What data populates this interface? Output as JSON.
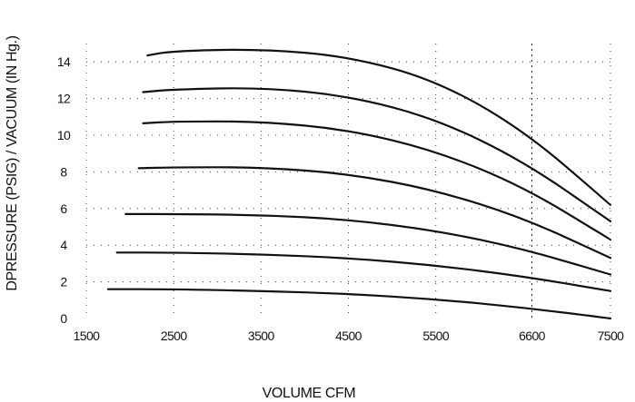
{
  "chart_data": {
    "type": "line",
    "xlabel": "VOLUME CFM",
    "ylabel": "DPRESSURE (PSIG) / VACUUM (IN Hg.)",
    "xlim": [
      1500,
      7500
    ],
    "ylim": [
      0,
      15
    ],
    "x_ticks": [
      "1500",
      "2500",
      "3500",
      "4500",
      "5500",
      "6600",
      "7500"
    ],
    "y_ticks": [
      "0",
      "2",
      "4",
      "6",
      "8",
      "10",
      "12",
      "14"
    ],
    "grid": "dotted",
    "series": [
      {
        "x": [
          1750,
          2500,
          3500,
          4500,
          5500,
          6500,
          7500
        ],
        "y": [
          1.6,
          1.6,
          1.5,
          1.35,
          1.05,
          0.6,
          0.0
        ]
      },
      {
        "x": [
          1850,
          2500,
          3500,
          4500,
          5500,
          6500,
          7500
        ],
        "y": [
          3.6,
          3.6,
          3.5,
          3.3,
          2.9,
          2.3,
          1.5
        ]
      },
      {
        "x": [
          1950,
          2500,
          3500,
          4500,
          5500,
          6500,
          7500
        ],
        "y": [
          5.7,
          5.7,
          5.65,
          5.4,
          4.8,
          3.8,
          2.4
        ]
      },
      {
        "x": [
          2100,
          2500,
          3500,
          4500,
          5500,
          6500,
          7500
        ],
        "y": [
          8.2,
          8.25,
          8.25,
          7.9,
          7.0,
          5.5,
          3.3
        ]
      },
      {
        "x": [
          2150,
          2500,
          3500,
          4500,
          5500,
          6500,
          7500
        ],
        "y": [
          10.65,
          10.75,
          10.75,
          10.3,
          9.15,
          7.2,
          4.3
        ]
      },
      {
        "x": [
          2150,
          2500,
          3500,
          4500,
          5500,
          6500,
          7500
        ],
        "y": [
          12.35,
          12.5,
          12.6,
          12.15,
          10.9,
          8.6,
          5.3
        ]
      },
      {
        "x": [
          2200,
          2500,
          3500,
          4500,
          5500,
          6500,
          7500
        ],
        "y": [
          14.35,
          14.6,
          14.7,
          14.3,
          13.0,
          10.3,
          6.2
        ]
      }
    ]
  }
}
